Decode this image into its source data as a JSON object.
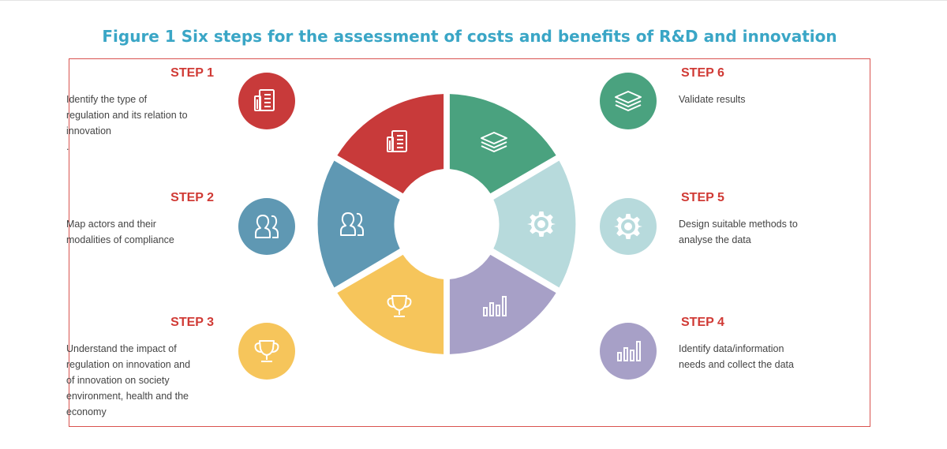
{
  "title": "Figure 1 Six steps for the assessment of costs and benefits of R&D and innovation",
  "colors": {
    "title": "#3aa6c6",
    "step_heading": "#d03a35",
    "step1": "#c83a3a",
    "step2": "#5f98b3",
    "step3": "#f6c55b",
    "step4": "#a7a0c7",
    "step5": "#b7dadc",
    "step6": "#4aa27f"
  },
  "steps": [
    {
      "label": "STEP 1",
      "text": [
        "Identify the type of",
        "regulation and its relation to",
        "innovation",
        "."
      ],
      "icon": "document-icon"
    },
    {
      "label": "STEP 2",
      "text": [
        "Map actors and their",
        "modalities of compliance"
      ],
      "icon": "people-icon"
    },
    {
      "label": "STEP 3",
      "text": [
        "Understand the impact of",
        "regulation on innovation and",
        "of innovation on society",
        "environment, health and the",
        "economy"
      ],
      "icon": "trophy-icon"
    },
    {
      "label": "STEP 4",
      "text": [
        "Identify data/information",
        "needs and collect the data"
      ],
      "icon": "bar-chart-icon"
    },
    {
      "label": "STEP 5",
      "text": [
        "Design suitable methods to",
        "analyse the data"
      ],
      "icon": "gear-icon"
    },
    {
      "label": "STEP 6",
      "text": [
        "Validate results"
      ],
      "icon": "layers-icon"
    }
  ]
}
